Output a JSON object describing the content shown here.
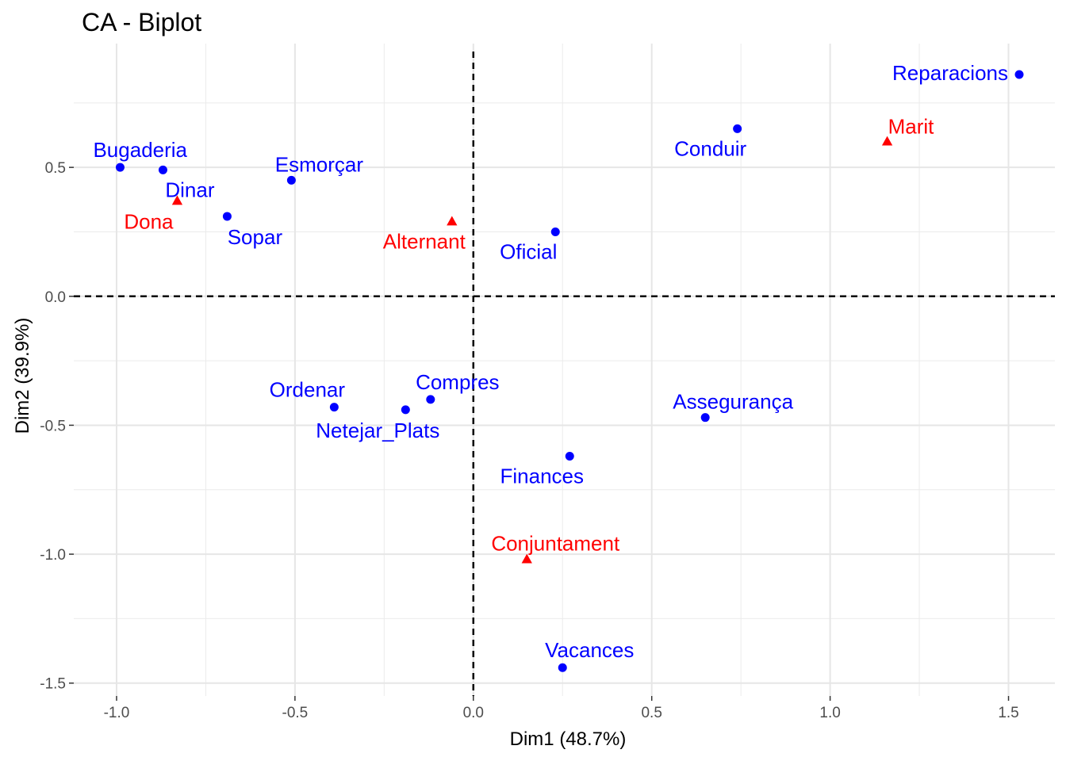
{
  "chart_data": {
    "type": "scatter",
    "title": "CA - Biplot",
    "xlabel": "Dim1 (48.7%)",
    "ylabel": "Dim2 (39.9%)",
    "xlim": [
      -1.12,
      1.63
    ],
    "ylim": [
      -1.55,
      0.98
    ],
    "x_ticks": [
      -1.0,
      -0.5,
      0.0,
      0.5,
      1.0,
      1.5
    ],
    "x_tick_labels": [
      "-1.0",
      "-0.5",
      "0.0",
      "0.5",
      "1.0",
      "1.5"
    ],
    "y_ticks": [
      -1.5,
      -1.0,
      -0.5,
      0.0,
      0.5
    ],
    "y_tick_labels": [
      "-1.5",
      "-1.0",
      "-0.5",
      "0.0",
      "0.5"
    ],
    "grid": true,
    "reference_lines": {
      "x": 0,
      "y": 0,
      "style": "dashed"
    },
    "series": [
      {
        "color": "#0000ff",
        "marker": "circle",
        "points": [
          {
            "label": "Reparacions",
            "x": 1.53,
            "y": 0.86
          },
          {
            "label": "Conduir",
            "x": 0.74,
            "y": 0.65
          },
          {
            "label": "Bugaderia",
            "x": -0.99,
            "y": 0.5
          },
          {
            "label": "Dinar",
            "x": -0.87,
            "y": 0.49
          },
          {
            "label": "Esmorçar",
            "x": -0.51,
            "y": 0.45
          },
          {
            "label": "Sopar",
            "x": -0.69,
            "y": 0.31
          },
          {
            "label": "Oficial",
            "x": 0.23,
            "y": 0.25
          },
          {
            "label": "Ordenar",
            "x": -0.39,
            "y": -0.43
          },
          {
            "label": "Netejar_Plats",
            "x": -0.19,
            "y": -0.44
          },
          {
            "label": "Compres",
            "x": -0.12,
            "y": -0.4
          },
          {
            "label": "Assegurança",
            "x": 0.65,
            "y": -0.47
          },
          {
            "label": "Finances",
            "x": 0.27,
            "y": -0.62
          },
          {
            "label": "Vacances",
            "x": 0.25,
            "y": -1.44
          }
        ]
      },
      {
        "color": "#ff0000",
        "marker": "triangle",
        "points": [
          {
            "label": "Marit",
            "x": 1.16,
            "y": 0.6
          },
          {
            "label": "Dona",
            "x": -0.83,
            "y": 0.37
          },
          {
            "label": "Alternant",
            "x": -0.06,
            "y": 0.29
          },
          {
            "label": "Conjuntament",
            "x": 0.15,
            "y": -1.02
          }
        ]
      }
    ]
  }
}
